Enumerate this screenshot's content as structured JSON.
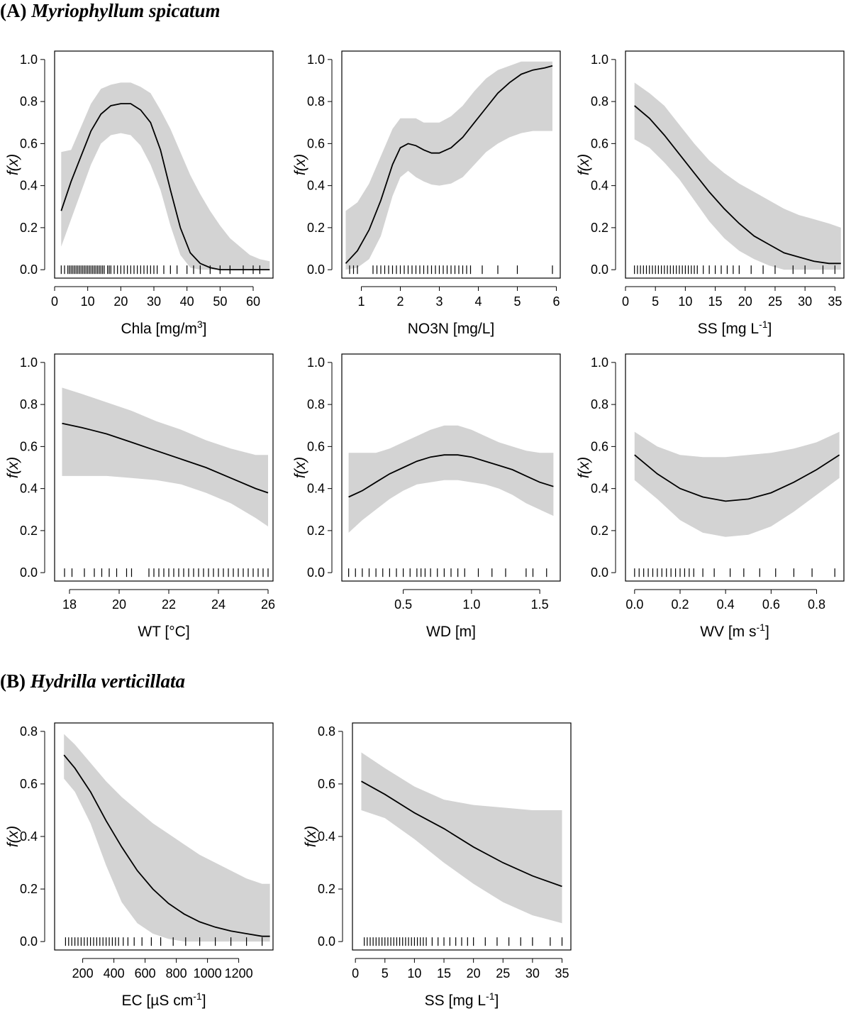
{
  "sections": [
    {
      "label": "(A)",
      "species": "Myriophyllum spicatum"
    },
    {
      "label": "(B)",
      "species": "Hydrilla verticillata"
    }
  ],
  "colors": {
    "band": "#d3d3d3",
    "line": "#000000",
    "frame": "#000000"
  },
  "chart_data": [
    {
      "type": "line",
      "id": "A1",
      "section": "A",
      "xlabel": "Chla [mg/m",
      "xlabel_sup": "3",
      "xlabel_after": "]",
      "ylabel": "f(x)",
      "xlim": [
        0,
        66
      ],
      "ylim": [
        0,
        1
      ],
      "xticks": [
        0,
        10,
        20,
        30,
        40,
        50,
        60
      ],
      "yticks": [
        0.0,
        0.2,
        0.4,
        0.6,
        0.8,
        1.0
      ],
      "yticklabels": [
        "0.0",
        "0.2",
        "0.4",
        "0.6",
        "0.8",
        "1.0"
      ],
      "x": [
        2,
        5,
        8,
        11,
        14,
        17,
        20,
        23,
        26,
        29,
        32,
        35,
        38,
        41,
        44,
        47,
        50,
        53,
        56,
        59,
        62,
        65
      ],
      "y": [
        0.28,
        0.42,
        0.54,
        0.66,
        0.74,
        0.78,
        0.79,
        0.79,
        0.76,
        0.7,
        0.57,
        0.38,
        0.2,
        0.08,
        0.03,
        0.01,
        0.0,
        0.0,
        0.0,
        0.0,
        0.0,
        0.0
      ],
      "lower": [
        0.11,
        0.24,
        0.37,
        0.5,
        0.6,
        0.64,
        0.65,
        0.64,
        0.59,
        0.5,
        0.38,
        0.21,
        0.07,
        0.01,
        0.0,
        0.0,
        0.0,
        0.0,
        0.0,
        0.0,
        0.0,
        0.0
      ],
      "upper": [
        0.56,
        0.57,
        0.68,
        0.79,
        0.86,
        0.88,
        0.89,
        0.89,
        0.87,
        0.84,
        0.76,
        0.67,
        0.56,
        0.45,
        0.36,
        0.28,
        0.21,
        0.15,
        0.11,
        0.07,
        0.05,
        0.04
      ],
      "rug": [
        2,
        3,
        4,
        4.5,
        5,
        5.5,
        6,
        6.5,
        7,
        7.5,
        8,
        8.5,
        9,
        9.5,
        10,
        10.5,
        11,
        11.5,
        12,
        12.5,
        13,
        13.5,
        14,
        14.5,
        15,
        16,
        16.5,
        17,
        18,
        19,
        20,
        21,
        22,
        23,
        24,
        25,
        26,
        27,
        28,
        29,
        30,
        31,
        33,
        35,
        37,
        40,
        42,
        44,
        47,
        50,
        53,
        57,
        60,
        62
      ]
    },
    {
      "type": "line",
      "id": "A2",
      "section": "A",
      "xlabel": "NO3N [mg/L]",
      "xlabel_sup": "",
      "xlabel_after": "",
      "ylabel": "f(x)",
      "xlim": [
        0.5,
        6.1
      ],
      "ylim": [
        0,
        1
      ],
      "xticks": [
        1,
        2,
        3,
        4,
        5,
        6
      ],
      "yticks": [
        0.0,
        0.2,
        0.4,
        0.6,
        0.8,
        1.0
      ],
      "yticklabels": [
        "0.0",
        "0.2",
        "0.4",
        "0.6",
        "0.8",
        "1.0"
      ],
      "x": [
        0.6,
        0.9,
        1.2,
        1.5,
        1.8,
        2.0,
        2.2,
        2.4,
        2.6,
        2.8,
        3.0,
        3.3,
        3.6,
        3.9,
        4.2,
        4.5,
        4.8,
        5.1,
        5.4,
        5.7,
        5.9
      ],
      "y": [
        0.03,
        0.09,
        0.19,
        0.33,
        0.5,
        0.58,
        0.6,
        0.59,
        0.57,
        0.555,
        0.555,
        0.58,
        0.63,
        0.7,
        0.77,
        0.84,
        0.89,
        0.93,
        0.95,
        0.96,
        0.97
      ],
      "lower": [
        0.0,
        0.01,
        0.05,
        0.16,
        0.35,
        0.44,
        0.47,
        0.44,
        0.42,
        0.405,
        0.4,
        0.41,
        0.44,
        0.5,
        0.56,
        0.6,
        0.63,
        0.65,
        0.66,
        0.66,
        0.66
      ],
      "upper": [
        0.28,
        0.32,
        0.41,
        0.54,
        0.67,
        0.72,
        0.72,
        0.72,
        0.7,
        0.7,
        0.7,
        0.73,
        0.78,
        0.85,
        0.91,
        0.95,
        0.97,
        0.99,
        0.99,
        0.99,
        0.99
      ],
      "rug": [
        0.7,
        0.8,
        0.9,
        1.3,
        1.4,
        1.5,
        1.6,
        1.7,
        1.8,
        1.9,
        2.0,
        2.1,
        2.2,
        2.3,
        2.4,
        2.5,
        2.6,
        2.7,
        2.8,
        2.9,
        3.0,
        3.1,
        3.2,
        3.3,
        3.4,
        3.5,
        3.6,
        3.7,
        3.8,
        4.1,
        4.5,
        5.0,
        5.9
      ]
    },
    {
      "type": "line",
      "id": "A3",
      "section": "A",
      "xlabel": "SS [mg L",
      "xlabel_sup": "-1",
      "xlabel_after": "]",
      "ylabel": "f(x)",
      "xlim": [
        0,
        36.5
      ],
      "ylim": [
        0,
        1
      ],
      "xticks": [
        0,
        5,
        10,
        15,
        20,
        25,
        30,
        35
      ],
      "yticks": [
        0.0,
        0.2,
        0.4,
        0.6,
        0.8,
        1.0
      ],
      "yticklabels": [
        "0.0",
        "0.2",
        "0.4",
        "0.6",
        "0.8",
        "1.0"
      ],
      "x": [
        1.5,
        4,
        6.5,
        9,
        11.5,
        14,
        16.5,
        19,
        21.5,
        24,
        26.5,
        29,
        31.5,
        34,
        36
      ],
      "y": [
        0.78,
        0.72,
        0.64,
        0.55,
        0.46,
        0.37,
        0.29,
        0.22,
        0.16,
        0.12,
        0.08,
        0.06,
        0.04,
        0.03,
        0.03
      ],
      "lower": [
        0.62,
        0.58,
        0.51,
        0.43,
        0.33,
        0.23,
        0.15,
        0.09,
        0.05,
        0.02,
        0.0,
        0.0,
        0.0,
        0.0,
        0.0
      ],
      "upper": [
        0.89,
        0.84,
        0.78,
        0.69,
        0.6,
        0.52,
        0.46,
        0.41,
        0.37,
        0.33,
        0.29,
        0.26,
        0.24,
        0.22,
        0.2
      ],
      "rug": [
        1.5,
        2,
        2.5,
        3,
        3.5,
        4,
        4.5,
        5,
        5.5,
        6,
        6.5,
        7,
        7.5,
        8,
        8.5,
        9,
        9.5,
        10,
        10.5,
        11,
        11.5,
        12,
        13,
        14,
        15,
        16,
        17,
        18,
        19,
        21,
        23,
        25,
        28,
        30,
        33,
        35
      ]
    },
    {
      "type": "line",
      "id": "A4",
      "section": "A",
      "xlabel": "WT [°C]",
      "xlabel_sup": "",
      "xlabel_after": "",
      "ylabel": "f(x)",
      "xlim": [
        17.4,
        26.2
      ],
      "ylim": [
        0,
        1
      ],
      "xticks": [
        18,
        20,
        22,
        24,
        26
      ],
      "yticks": [
        0.0,
        0.2,
        0.4,
        0.6,
        0.8,
        1.0
      ],
      "yticklabels": [
        "0.0",
        "0.2",
        "0.4",
        "0.6",
        "0.8",
        "1.0"
      ],
      "x": [
        17.7,
        18.5,
        19.5,
        20.5,
        21.5,
        22.5,
        23.5,
        24.5,
        25.5,
        26.0
      ],
      "y": [
        0.71,
        0.69,
        0.66,
        0.62,
        0.58,
        0.54,
        0.5,
        0.45,
        0.4,
        0.38
      ],
      "lower": [
        0.46,
        0.46,
        0.46,
        0.45,
        0.44,
        0.42,
        0.38,
        0.33,
        0.26,
        0.22
      ],
      "upper": [
        0.88,
        0.85,
        0.81,
        0.77,
        0.72,
        0.68,
        0.63,
        0.59,
        0.56,
        0.56
      ],
      "rug": [
        17.8,
        18.1,
        18.6,
        19.0,
        19.3,
        19.6,
        19.9,
        20.3,
        20.5,
        21.2,
        21.4,
        21.6,
        21.8,
        22.0,
        22.2,
        22.4,
        22.6,
        22.8,
        23.0,
        23.2,
        23.4,
        23.6,
        23.8,
        24.0,
        24.2,
        24.4,
        24.6,
        24.8,
        25.0,
        25.2,
        25.4,
        25.6,
        25.8,
        26.0
      ]
    },
    {
      "type": "line",
      "id": "A5",
      "section": "A",
      "xlabel": "WD [m]",
      "xlabel_sup": "",
      "xlabel_after": "",
      "ylabel": "f(x)",
      "xlim": [
        0.05,
        1.65
      ],
      "ylim": [
        0,
        1
      ],
      "xticks": [
        0.5,
        1.0,
        1.5
      ],
      "xticklabels": [
        "0.5",
        "1.0",
        "1.5"
      ],
      "yticks": [
        0.0,
        0.2,
        0.4,
        0.6,
        0.8,
        1.0
      ],
      "yticklabels": [
        "0.0",
        "0.2",
        "0.4",
        "0.6",
        "0.8",
        "1.0"
      ],
      "x": [
        0.1,
        0.2,
        0.3,
        0.4,
        0.5,
        0.6,
        0.7,
        0.8,
        0.9,
        1.0,
        1.1,
        1.2,
        1.3,
        1.4,
        1.5,
        1.6
      ],
      "y": [
        0.36,
        0.39,
        0.43,
        0.47,
        0.5,
        0.53,
        0.55,
        0.56,
        0.56,
        0.55,
        0.53,
        0.51,
        0.49,
        0.46,
        0.43,
        0.41
      ],
      "lower": [
        0.19,
        0.25,
        0.3,
        0.35,
        0.39,
        0.42,
        0.43,
        0.44,
        0.44,
        0.43,
        0.42,
        0.4,
        0.37,
        0.33,
        0.3,
        0.27
      ],
      "upper": [
        0.57,
        0.57,
        0.57,
        0.59,
        0.62,
        0.65,
        0.68,
        0.7,
        0.7,
        0.68,
        0.65,
        0.62,
        0.6,
        0.58,
        0.57,
        0.57
      ],
      "rug": [
        0.1,
        0.15,
        0.2,
        0.25,
        0.3,
        0.35,
        0.4,
        0.45,
        0.5,
        0.55,
        0.6,
        0.63,
        0.66,
        0.7,
        0.75,
        0.8,
        0.85,
        0.9,
        0.95,
        1.05,
        1.15,
        1.25,
        1.4,
        1.45,
        1.55
      ]
    },
    {
      "type": "line",
      "id": "A6",
      "section": "A",
      "xlabel": "WV [m s",
      "xlabel_sup": "-1",
      "xlabel_after": "]",
      "ylabel": "f(x)",
      "xlim": [
        -0.04,
        0.92
      ],
      "ylim": [
        0,
        1
      ],
      "xticks": [
        0.0,
        0.2,
        0.4,
        0.6,
        0.8
      ],
      "xticklabels": [
        "0.0",
        "0.2",
        "0.4",
        "0.6",
        "0.8"
      ],
      "yticks": [
        0.0,
        0.2,
        0.4,
        0.6,
        0.8,
        1.0
      ],
      "yticklabels": [
        "0.0",
        "0.2",
        "0.4",
        "0.6",
        "0.8",
        "1.0"
      ],
      "x": [
        0.0,
        0.1,
        0.2,
        0.3,
        0.4,
        0.5,
        0.6,
        0.7,
        0.8,
        0.9
      ],
      "y": [
        0.56,
        0.47,
        0.4,
        0.36,
        0.34,
        0.35,
        0.38,
        0.43,
        0.49,
        0.56
      ],
      "lower": [
        0.44,
        0.35,
        0.25,
        0.19,
        0.17,
        0.18,
        0.22,
        0.29,
        0.37,
        0.45
      ],
      "upper": [
        0.67,
        0.6,
        0.56,
        0.55,
        0.55,
        0.56,
        0.57,
        0.59,
        0.62,
        0.67
      ],
      "rug": [
        0.0,
        0.02,
        0.04,
        0.06,
        0.08,
        0.1,
        0.12,
        0.14,
        0.16,
        0.18,
        0.2,
        0.22,
        0.24,
        0.26,
        0.3,
        0.35,
        0.42,
        0.48,
        0.55,
        0.62,
        0.7,
        0.78,
        0.88
      ]
    },
    {
      "type": "line",
      "id": "B1",
      "section": "B",
      "xlabel": "EC [µS cm",
      "xlabel_sup": "-1",
      "xlabel_after": "]",
      "ylabel": "f(x)",
      "xlim": [
        20,
        1420
      ],
      "ylim": [
        0,
        0.8
      ],
      "xticks": [
        200,
        400,
        600,
        800,
        1000,
        1200
      ],
      "xticklabels": [
        "200",
        "400",
        "600",
        "800",
        "1000",
        "1200"
      ],
      "yticks": [
        0.0,
        0.2,
        0.4,
        0.6,
        0.8
      ],
      "yticklabels": [
        "0.0",
        "0.2",
        "0.4",
        "0.6",
        "0.8"
      ],
      "x": [
        80,
        150,
        250,
        350,
        450,
        550,
        650,
        750,
        850,
        950,
        1050,
        1150,
        1250,
        1350,
        1400
      ],
      "y": [
        0.71,
        0.66,
        0.57,
        0.46,
        0.36,
        0.27,
        0.2,
        0.145,
        0.105,
        0.075,
        0.055,
        0.04,
        0.03,
        0.02,
        0.02
      ],
      "lower": [
        0.62,
        0.57,
        0.45,
        0.29,
        0.15,
        0.07,
        0.03,
        0.01,
        0.0,
        0.0,
        0.0,
        0.0,
        0.0,
        0.0,
        0.0
      ],
      "upper": [
        0.79,
        0.75,
        0.68,
        0.61,
        0.55,
        0.5,
        0.45,
        0.41,
        0.37,
        0.33,
        0.3,
        0.27,
        0.24,
        0.22,
        0.22
      ],
      "rug": [
        90,
        110,
        130,
        150,
        170,
        190,
        210,
        230,
        250,
        270,
        290,
        310,
        330,
        350,
        370,
        390,
        410,
        430,
        460,
        490,
        530,
        580,
        640,
        700,
        780,
        860,
        950,
        1050,
        1150,
        1250,
        1350
      ]
    },
    {
      "type": "line",
      "id": "B2",
      "section": "B",
      "xlabel": "SS [mg L",
      "xlabel_sup": "-1",
      "xlabel_after": "]",
      "ylabel": "f(x)",
      "xlim": [
        -0.5,
        36.5
      ],
      "ylim": [
        0,
        0.8
      ],
      "xticks": [
        0,
        5,
        10,
        15,
        20,
        25,
        30,
        35
      ],
      "yticks": [
        0.0,
        0.2,
        0.4,
        0.6,
        0.8
      ],
      "yticklabels": [
        "0.0",
        "0.2",
        "0.4",
        "0.6",
        "0.8"
      ],
      "x": [
        1,
        5,
        10,
        15,
        20,
        25,
        30,
        35
      ],
      "y": [
        0.61,
        0.56,
        0.49,
        0.43,
        0.36,
        0.3,
        0.25,
        0.21
      ],
      "lower": [
        0.5,
        0.47,
        0.39,
        0.3,
        0.22,
        0.15,
        0.1,
        0.07
      ],
      "upper": [
        0.72,
        0.66,
        0.59,
        0.54,
        0.52,
        0.51,
        0.5,
        0.5
      ],
      "rug": [
        1.5,
        2,
        2.5,
        3,
        3.5,
        4,
        4.5,
        5,
        5.5,
        6,
        6.5,
        7,
        7.5,
        8,
        8.5,
        9,
        9.5,
        10,
        10.5,
        11,
        11.5,
        12,
        13,
        14,
        15,
        16,
        17,
        18,
        19,
        20,
        22,
        24,
        26,
        28,
        30,
        33,
        35
      ]
    }
  ]
}
